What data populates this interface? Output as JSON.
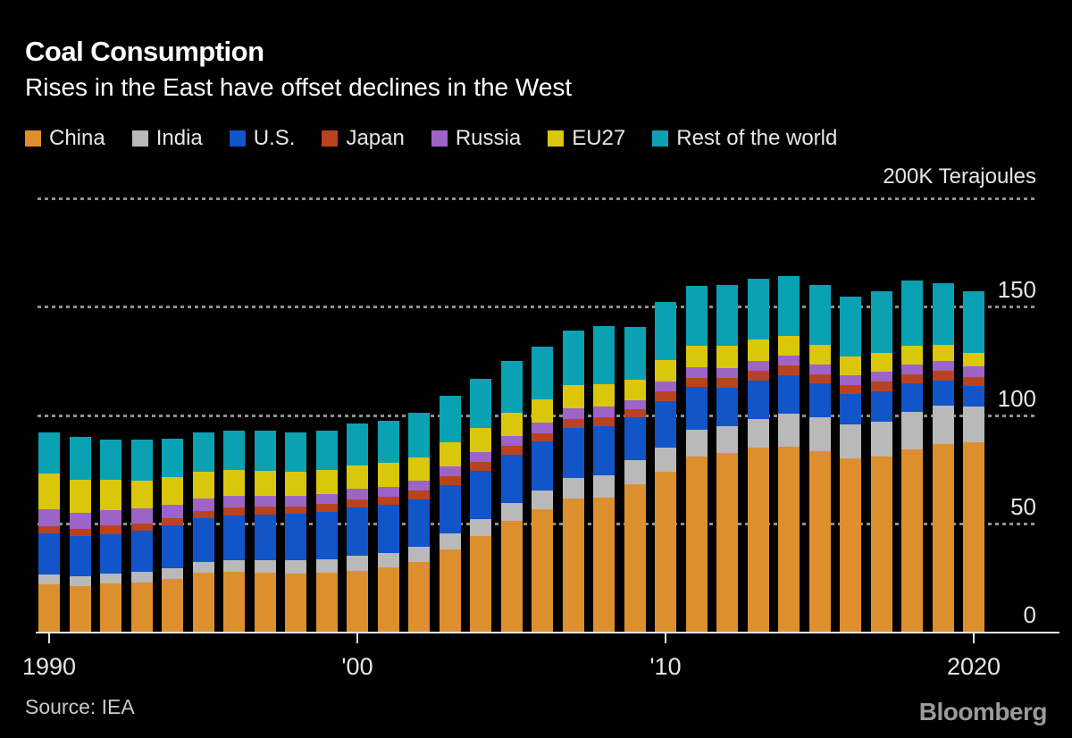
{
  "header": {
    "title": "Coal Consumption",
    "subtitle": "Rises in the East have offset declines in the West"
  },
  "legend": [
    {
      "label": "China",
      "color": "#DE8F2D"
    },
    {
      "label": "India",
      "color": "#B9B9B9"
    },
    {
      "label": "U.S.",
      "color": "#1155C9"
    },
    {
      "label": "Japan",
      "color": "#B9431F"
    },
    {
      "label": "Russia",
      "color": "#9C64C6"
    },
    {
      "label": "EU27",
      "color": "#DAC70C"
    },
    {
      "label": "Rest of the world",
      "color": "#0AA2B3"
    }
  ],
  "axis": {
    "unit_label": "200K Terajoules",
    "y_ticks": [
      {
        "label": "150",
        "value": 150
      },
      {
        "label": "100",
        "value": 100
      },
      {
        "label": "50",
        "value": 50
      },
      {
        "label": "0",
        "value": 0
      }
    ],
    "x_ticks": [
      {
        "label": "1990",
        "year": 1990
      },
      {
        "label": "'00",
        "year": 2000
      },
      {
        "label": "'10",
        "year": 2010
      },
      {
        "label": "2020",
        "year": 2020
      }
    ],
    "gridline_values": [
      200,
      150,
      100,
      50
    ]
  },
  "footer": {
    "source": "Source: IEA",
    "brand": "Bloomberg"
  },
  "chart_data": {
    "type": "bar",
    "stacked": true,
    "title": "Coal Consumption",
    "subtitle": "Rises in the East have offset declines in the West",
    "unit": "K Terajoules",
    "ylabel": "200K Terajoules",
    "ylim": [
      0,
      200
    ],
    "grid": "dotted horizontal",
    "legend_position": "top",
    "background_color": "#000000",
    "x": [
      1990,
      1991,
      1992,
      1993,
      1994,
      1995,
      1996,
      1997,
      1998,
      1999,
      2000,
      2001,
      2002,
      2003,
      2004,
      2005,
      2006,
      2007,
      2008,
      2009,
      2010,
      2011,
      2012,
      2013,
      2014,
      2015,
      2016,
      2017,
      2018,
      2019,
      2020
    ],
    "series": [
      {
        "name": "China",
        "color": "#DE8F2D",
        "values": [
          22.0,
          21.2,
          22.1,
          22.8,
          24.5,
          27.2,
          27.5,
          27.3,
          26.8,
          27.2,
          28.2,
          29.5,
          32.0,
          38.0,
          44.0,
          51.0,
          56.5,
          61.5,
          62.0,
          68.0,
          74.0,
          81.0,
          82.5,
          85.0,
          85.5,
          83.5,
          80.0,
          81.0,
          84.0,
          86.5,
          87.5
        ]
      },
      {
        "name": "India",
        "color": "#B9B9B9",
        "values": [
          4.3,
          4.4,
          4.6,
          4.8,
          4.9,
          5.1,
          5.4,
          5.7,
          6.0,
          6.4,
          6.8,
          7.0,
          7.2,
          7.5,
          7.8,
          8.2,
          8.8,
          9.6,
          10.2,
          11.0,
          11.0,
          12.0,
          12.5,
          13.0,
          15.0,
          15.5,
          15.5,
          16.0,
          17.5,
          18.0,
          16.5
        ]
      },
      {
        "name": "U.S.",
        "color": "#1155C9",
        "values": [
          19.2,
          18.5,
          18.4,
          18.9,
          19.6,
          20.1,
          20.8,
          21.2,
          21.5,
          21.7,
          22.5,
          22.0,
          22.0,
          22.3,
          22.5,
          22.6,
          22.5,
          23.0,
          22.5,
          19.8,
          21.5,
          20.0,
          17.5,
          18.0,
          18.0,
          15.5,
          14.0,
          14.0,
          13.0,
          11.5,
          9.5
        ]
      },
      {
        "name": "Japan",
        "color": "#B9431F",
        "values": [
          3.3,
          3.5,
          3.8,
          3.5,
          3.5,
          3.3,
          3.5,
          3.5,
          3.4,
          3.5,
          3.6,
          3.7,
          3.8,
          3.9,
          4.0,
          4.0,
          3.9,
          4.2,
          4.2,
          3.8,
          4.3,
          4.3,
          4.5,
          4.5,
          4.4,
          4.4,
          4.4,
          4.5,
          4.4,
          4.3,
          4.0
        ]
      },
      {
        "name": "Russia",
        "color": "#9C64C6",
        "values": [
          7.8,
          7.4,
          7.1,
          6.8,
          6.2,
          5.8,
          5.4,
          5.0,
          4.8,
          4.7,
          4.8,
          4.8,
          4.7,
          4.8,
          4.7,
          4.6,
          4.7,
          4.8,
          4.9,
          4.4,
          4.6,
          4.8,
          4.8,
          4.6,
          4.5,
          4.5,
          4.4,
          4.4,
          4.5,
          4.5,
          5.0
        ]
      },
      {
        "name": "EU27",
        "color": "#DAC70C",
        "values": [
          16.5,
          15.3,
          14.0,
          13.0,
          12.5,
          12.2,
          12.0,
          11.6,
          11.2,
          11.0,
          10.8,
          10.9,
          10.8,
          11.0,
          11.0,
          10.8,
          10.8,
          10.8,
          10.4,
          9.2,
          9.8,
          10.0,
          10.0,
          9.8,
          9.3,
          9.0,
          8.8,
          8.7,
          8.5,
          7.5,
          6.0
        ]
      },
      {
        "name": "Rest of the world",
        "color": "#0AA2B3",
        "values": [
          18.9,
          19.7,
          18.5,
          18.7,
          17.8,
          18.3,
          18.4,
          18.7,
          18.3,
          18.5,
          19.3,
          19.6,
          20.5,
          21.5,
          22.8,
          23.8,
          24.3,
          25.1,
          26.8,
          24.3,
          26.8,
          27.4,
          28.2,
          28.1,
          27.3,
          27.6,
          27.4,
          28.4,
          30.1,
          28.7,
          28.5
        ]
      }
    ]
  }
}
